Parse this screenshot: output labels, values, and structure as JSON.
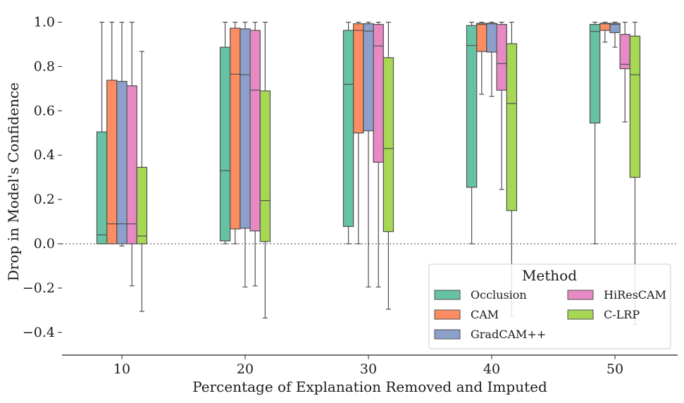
{
  "chart_data": {
    "type": "box",
    "xlabel": "Percentage of Explanation Removed and Imputed",
    "ylabel": "Drop in Model's Confidence",
    "categories": [
      "10",
      "20",
      "30",
      "40",
      "50"
    ],
    "yticks": [
      -0.4,
      -0.2,
      0.0,
      0.2,
      0.4,
      0.6,
      0.8,
      1.0
    ],
    "ytick_labels": [
      "−0.4",
      "−0.2",
      "0.0",
      "0.2",
      "0.4",
      "0.6",
      "0.8",
      "1.0"
    ],
    "ylim": [
      -0.5,
      1.05
    ],
    "reference_line": 0.0,
    "grid": false,
    "legend": {
      "title": "Method",
      "position": "bottom-right",
      "columns": 2
    },
    "series": [
      {
        "name": "Occlusion",
        "color": "#66c2a5",
        "boxes": [
          {
            "whisker_low": 0.0,
            "q1": 0.0,
            "median": 0.04,
            "q3": 0.505,
            "whisker_high": 1.0
          },
          {
            "whisker_low": 0.0,
            "q1": 0.013,
            "median": 0.33,
            "q3": 0.887,
            "whisker_high": 1.0
          },
          {
            "whisker_low": 0.0,
            "q1": 0.078,
            "median": 0.72,
            "q3": 0.963,
            "whisker_high": 1.0
          },
          {
            "whisker_low": 0.0,
            "q1": 0.255,
            "median": 0.895,
            "q3": 0.985,
            "whisker_high": 1.0
          },
          {
            "whisker_low": 0.0,
            "q1": 0.545,
            "median": 0.958,
            "q3": 0.99,
            "whisker_high": 1.0
          }
        ]
      },
      {
        "name": "CAM",
        "color": "#fc8d62",
        "boxes": [
          {
            "whisker_low": 0.0,
            "q1": 0.0,
            "median": 0.09,
            "q3": 0.738,
            "whisker_high": 1.0
          },
          {
            "whisker_low": 0.0,
            "q1": 0.067,
            "median": 0.765,
            "q3": 0.973,
            "whisker_high": 1.0
          },
          {
            "whisker_low": 0.0,
            "q1": 0.5,
            "median": 0.963,
            "q3": 0.993,
            "whisker_high": 1.0
          },
          {
            "whisker_low": 0.675,
            "q1": 0.868,
            "median": 0.99,
            "q3": 0.995,
            "whisker_high": 1.0
          },
          {
            "whisker_low": 0.91,
            "q1": 0.963,
            "median": 0.993,
            "q3": 0.995,
            "whisker_high": 1.0
          }
        ]
      },
      {
        "name": "GradCAM++",
        "color": "#8da0cb",
        "boxes": [
          {
            "whisker_low": -0.01,
            "q1": 0.0,
            "median": 0.09,
            "q3": 0.733,
            "whisker_high": 1.0
          },
          {
            "whisker_low": -0.195,
            "q1": 0.07,
            "median": 0.763,
            "q3": 0.97,
            "whisker_high": 1.0
          },
          {
            "whisker_low": -0.195,
            "q1": 0.51,
            "median": 0.96,
            "q3": 0.993,
            "whisker_high": 1.0
          },
          {
            "whisker_low": 0.665,
            "q1": 0.865,
            "median": 0.993,
            "q3": 0.995,
            "whisker_high": 1.0
          },
          {
            "whisker_low": 0.887,
            "q1": 0.953,
            "median": 0.99,
            "q3": 0.995,
            "whisker_high": 1.0
          }
        ]
      },
      {
        "name": "HiResCAM",
        "color": "#e78ac3",
        "boxes": [
          {
            "whisker_low": -0.19,
            "q1": 0.0,
            "median": 0.09,
            "q3": 0.713,
            "whisker_high": 1.0
          },
          {
            "whisker_low": -0.19,
            "q1": 0.058,
            "median": 0.693,
            "q3": 0.963,
            "whisker_high": 1.0
          },
          {
            "whisker_low": -0.195,
            "q1": 0.368,
            "median": 0.893,
            "q3": 0.99,
            "whisker_high": 1.0
          },
          {
            "whisker_low": 0.245,
            "q1": 0.693,
            "median": 0.813,
            "q3": 0.99,
            "whisker_high": 1.0
          },
          {
            "whisker_low": 0.55,
            "q1": 0.79,
            "median": 0.81,
            "q3": 0.945,
            "whisker_high": 1.0
          }
        ]
      },
      {
        "name": "C-LRP",
        "color": "#a6d854",
        "boxes": [
          {
            "whisker_low": -0.305,
            "q1": 0.0,
            "median": 0.035,
            "q3": 0.345,
            "whisker_high": 0.868
          },
          {
            "whisker_low": -0.335,
            "q1": 0.01,
            "median": 0.195,
            "q3": 0.69,
            "whisker_high": 1.0
          },
          {
            "whisker_low": -0.295,
            "q1": 0.055,
            "median": 0.43,
            "q3": 0.84,
            "whisker_high": 1.0
          },
          {
            "whisker_low": -0.325,
            "q1": 0.15,
            "median": 0.633,
            "q3": 0.903,
            "whisker_high": 1.0
          },
          {
            "whisker_low": -0.365,
            "q1": 0.3,
            "median": 0.763,
            "q3": 0.937,
            "whisker_high": 1.0
          }
        ]
      }
    ]
  }
}
